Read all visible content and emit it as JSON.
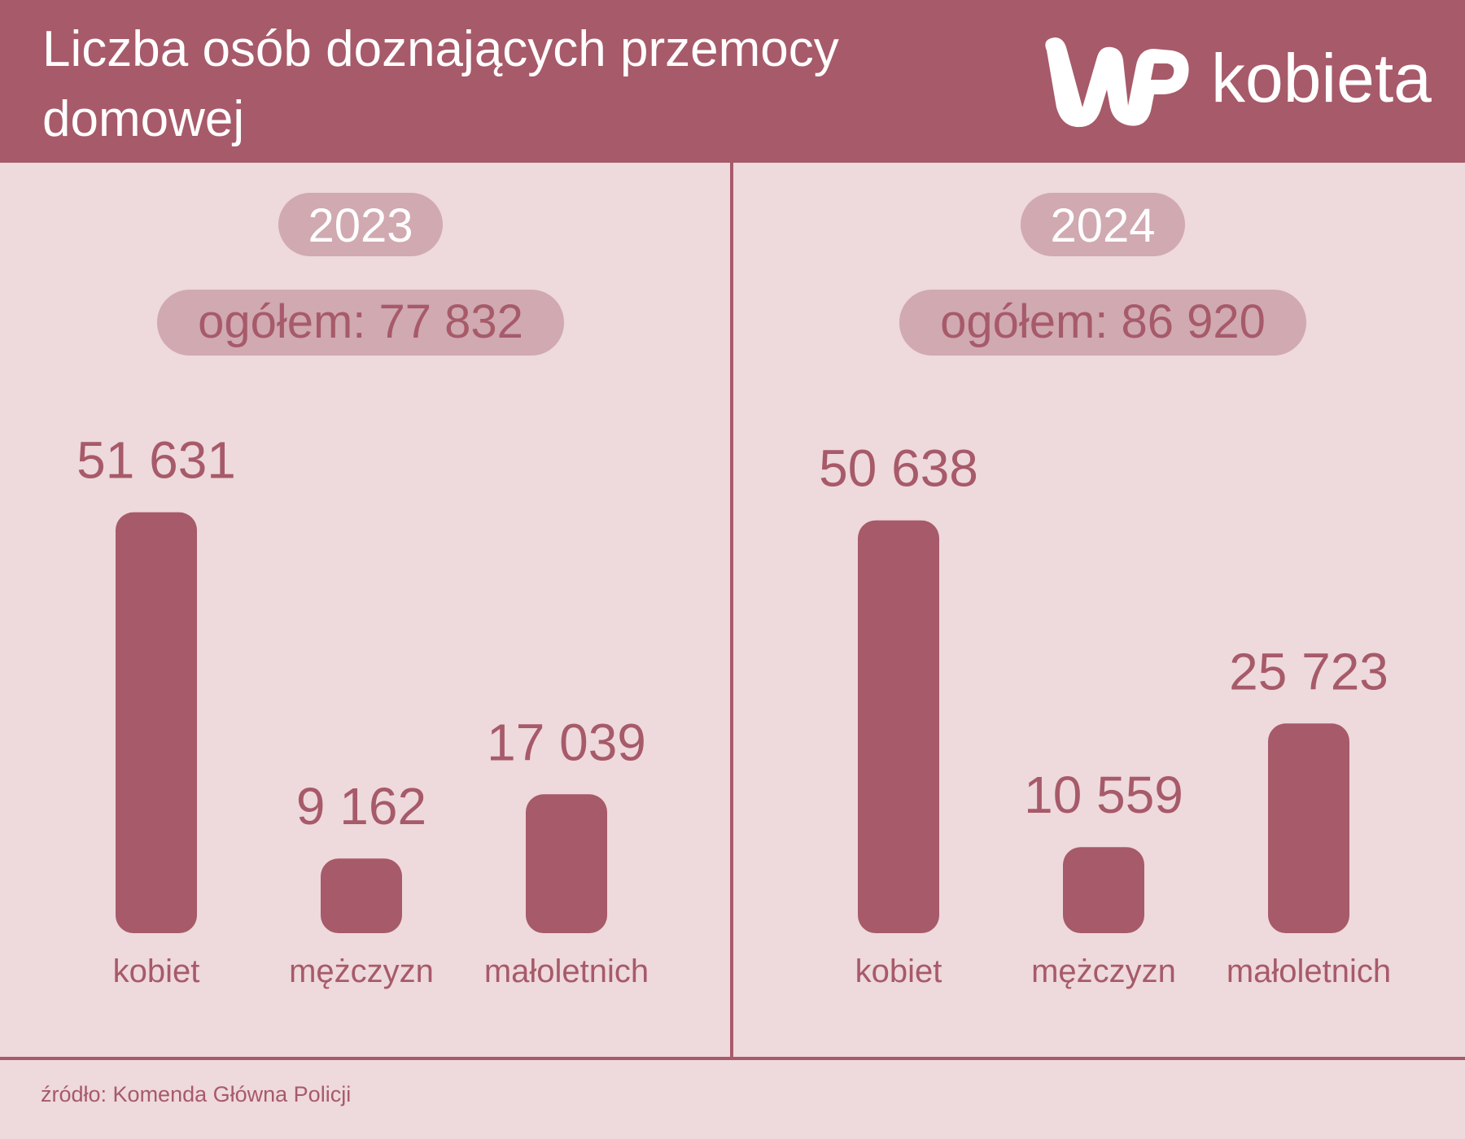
{
  "header": {
    "title": "Liczba osób doznających przemocy domowej",
    "brand": "WP",
    "brand_name": "kobieta"
  },
  "footer": {
    "source": "źródło: Komenda Główna Policji"
  },
  "colors": {
    "header": "#a75a69",
    "background": "#eed9dc",
    "bar": "#a75a69",
    "pill": "#d0a9b1",
    "text": "#a75a69"
  },
  "chart_data": {
    "type": "bar",
    "title": "Liczba osób doznających przemocy domowej",
    "categories": [
      "kobiet",
      "mężczyzn",
      "małoletnich"
    ],
    "panels": [
      {
        "year": "2023",
        "total_label": "ogółem: 77 832",
        "values": [
          51631,
          9162,
          17039
        ],
        "value_labels": [
          "51 631",
          "9 162",
          "17 039"
        ]
      },
      {
        "year": "2024",
        "total_label": "ogółem: 86 920",
        "values": [
          50638,
          10559,
          25723
        ],
        "value_labels": [
          "50 638",
          "10 559",
          "25 723"
        ]
      }
    ],
    "ylim": [
      0,
      52000
    ]
  }
}
